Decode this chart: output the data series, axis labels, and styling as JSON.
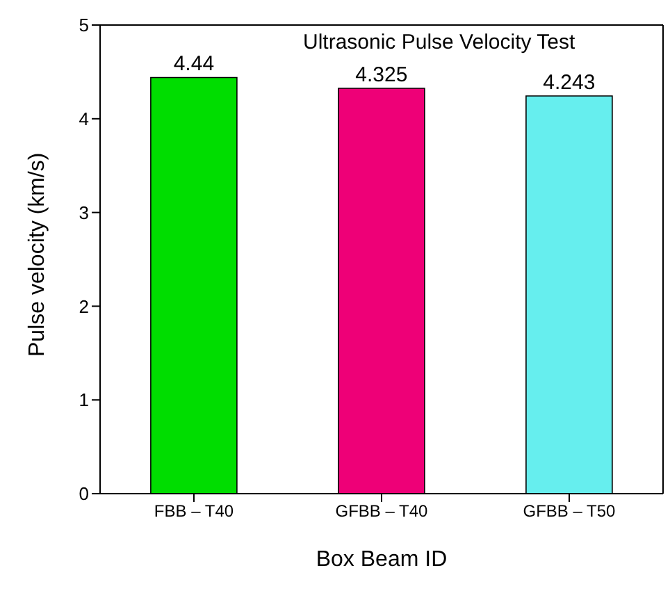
{
  "chart_data": {
    "type": "bar",
    "title": "Ultrasonic Pulse Velocity Test",
    "xlabel": "Box Beam ID",
    "ylabel": "Pulse velocity (km/s)",
    "categories": [
      "FBB – T40",
      "GFBB – T40",
      "GFBB – T50"
    ],
    "values": [
      4.44,
      4.325,
      4.243
    ],
    "colors": [
      "#00dd00",
      "#ee0077",
      "#66eeee"
    ],
    "ylim": [
      0,
      5
    ],
    "yticks": [
      0,
      1,
      2,
      3,
      4,
      5
    ],
    "data_labels": true
  }
}
